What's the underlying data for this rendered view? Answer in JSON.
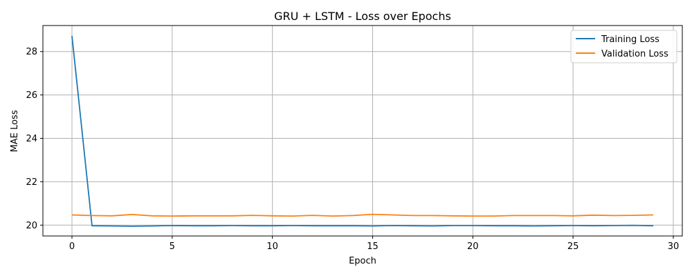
{
  "chart_data": {
    "type": "line",
    "title": "GRU + LSTM - Loss over Epochs",
    "xlabel": "Epoch",
    "ylabel": "MAE Loss",
    "xlim": [
      -1.45,
      30.45
    ],
    "ylim": [
      19.5,
      29.2
    ],
    "xticks": [
      0,
      5,
      10,
      15,
      20,
      25,
      30
    ],
    "yticks": [
      20,
      22,
      24,
      26,
      28
    ],
    "grid": true,
    "legend_position": "top-right",
    "x": [
      0,
      1,
      2,
      3,
      4,
      5,
      6,
      7,
      8,
      9,
      10,
      11,
      12,
      13,
      14,
      15,
      16,
      17,
      18,
      19,
      20,
      21,
      22,
      23,
      24,
      25,
      26,
      27,
      28,
      29
    ],
    "series": [
      {
        "name": "Training Loss",
        "color": "#1f77b4",
        "values": [
          28.72,
          19.97,
          19.96,
          19.95,
          19.96,
          19.98,
          19.97,
          19.97,
          19.98,
          19.97,
          19.97,
          19.98,
          19.97,
          19.97,
          19.97,
          19.96,
          19.98,
          19.97,
          19.96,
          19.98,
          19.98,
          19.97,
          19.97,
          19.96,
          19.97,
          19.98,
          19.97,
          19.98,
          19.99,
          19.97
        ]
      },
      {
        "name": "Validation Loss",
        "color": "#ff7f0e",
        "values": [
          20.47,
          20.44,
          20.43,
          20.49,
          20.43,
          20.42,
          20.43,
          20.43,
          20.43,
          20.45,
          20.43,
          20.42,
          20.45,
          20.42,
          20.44,
          20.5,
          20.47,
          20.44,
          20.44,
          20.43,
          20.42,
          20.42,
          20.44,
          20.44,
          20.44,
          20.43,
          20.46,
          20.44,
          20.45,
          20.47
        ]
      }
    ]
  }
}
